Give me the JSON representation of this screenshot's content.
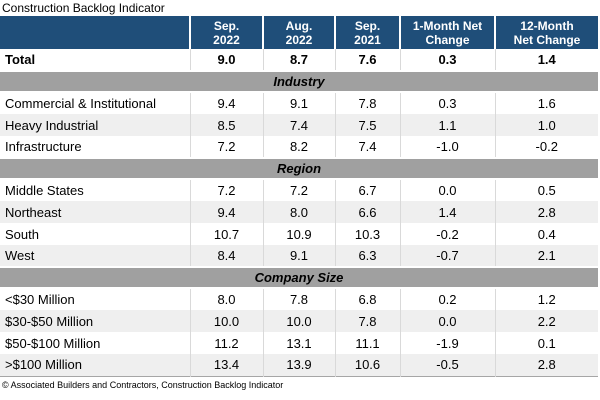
{
  "title": "Construction Backlog Indicator",
  "source_note": "© Associated Builders and Contractors, Construction Backlog Indicator",
  "colors": {
    "header_bg": "#1F4E79",
    "header_text": "#FFFFFF",
    "section_band_bg": "#A0A0A0",
    "stripe_bg": "#EFEFEF",
    "cell_divider": "#D9D9D9"
  },
  "chart_data": {
    "type": "table",
    "title": "Construction Backlog Indicator",
    "column_headers": [
      "Sep.\n2022",
      "Aug.\n2022",
      "Sep.\n2021",
      "1-Month Net\nChange",
      "12-Month\nNet Change"
    ],
    "total_row": {
      "label": "Total",
      "values": [
        "9.0",
        "8.7",
        "7.6",
        "0.3",
        "1.4"
      ]
    },
    "sections": [
      {
        "heading": "Industry",
        "rows": [
          {
            "label": "Commercial & Institutional",
            "values": [
              "9.4",
              "9.1",
              "7.8",
              "0.3",
              "1.6"
            ]
          },
          {
            "label": "Heavy Industrial",
            "values": [
              "8.5",
              "7.4",
              "7.5",
              "1.1",
              "1.0"
            ]
          },
          {
            "label": "Infrastructure",
            "values": [
              "7.2",
              "8.2",
              "7.4",
              "-1.0",
              "-0.2"
            ]
          }
        ]
      },
      {
        "heading": "Region",
        "rows": [
          {
            "label": "Middle States",
            "values": [
              "7.2",
              "7.2",
              "6.7",
              "0.0",
              "0.5"
            ]
          },
          {
            "label": "Northeast",
            "values": [
              "9.4",
              "8.0",
              "6.6",
              "1.4",
              "2.8"
            ]
          },
          {
            "label": "South",
            "values": [
              "10.7",
              "10.9",
              "10.3",
              "-0.2",
              "0.4"
            ]
          },
          {
            "label": "West",
            "values": [
              "8.4",
              "9.1",
              "6.3",
              "-0.7",
              "2.1"
            ]
          }
        ]
      },
      {
        "heading": "Company Size",
        "rows": [
          {
            "label": "<$30 Million",
            "values": [
              "8.0",
              "7.8",
              "6.8",
              "0.2",
              "1.2"
            ]
          },
          {
            "label": "$30-$50 Million",
            "values": [
              "10.0",
              "10.0",
              "7.8",
              "0.0",
              "2.2"
            ]
          },
          {
            "label": "$50-$100 Million",
            "values": [
              "11.2",
              "13.1",
              "11.1",
              "-1.9",
              "0.1"
            ]
          },
          {
            "label": ">$100 Million",
            "values": [
              "13.4",
              "13.9",
              "10.6",
              "-0.5",
              "2.8"
            ]
          }
        ]
      }
    ]
  }
}
